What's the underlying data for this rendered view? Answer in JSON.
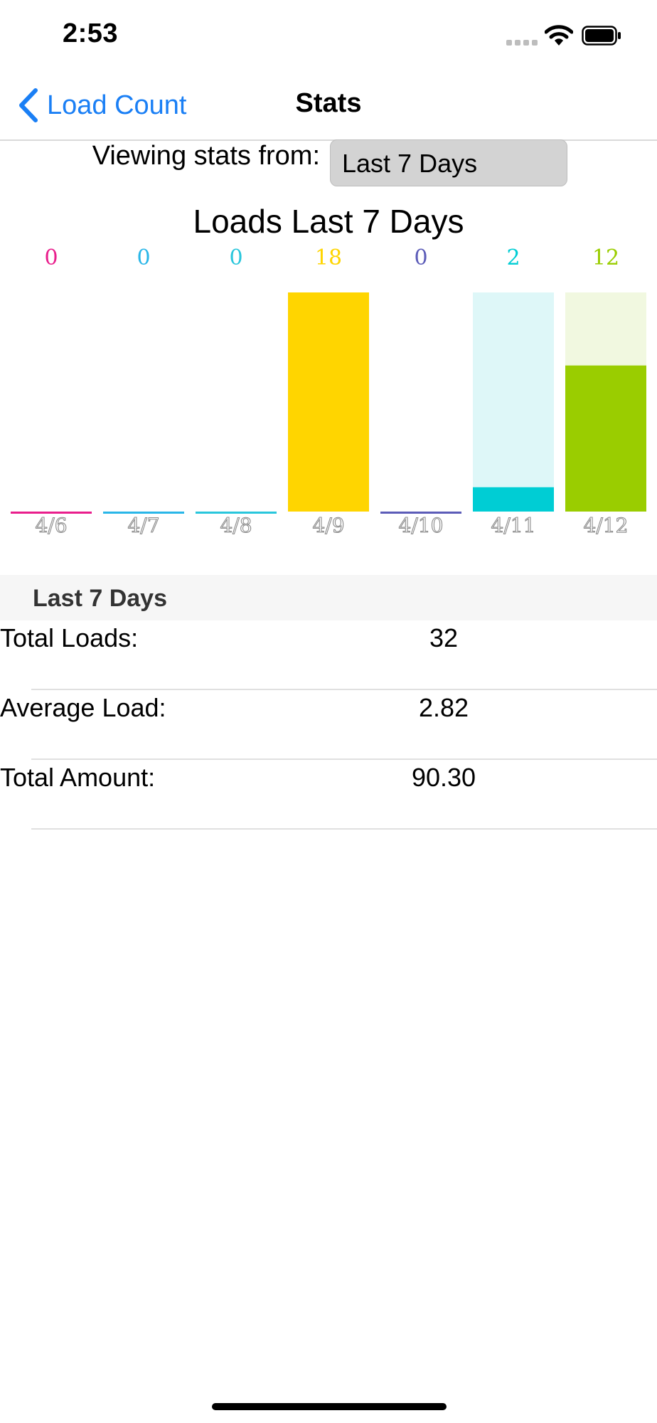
{
  "status_bar": {
    "time": "2:53",
    "icons": [
      "signal-dots-icon",
      "wifi-icon",
      "battery-icon"
    ]
  },
  "nav": {
    "back_label": "Load Count",
    "title": "Stats",
    "back_icon": "chevron-left-icon",
    "accent": "#1a7ff5"
  },
  "filter": {
    "label": "Viewing stats from:",
    "selected": "Last 7 Days"
  },
  "chart_data": {
    "type": "bar",
    "title": "Loads Last 7 Days",
    "categories": [
      "4/6",
      "4/7",
      "4/8",
      "4/9",
      "4/10",
      "4/11",
      "4/12"
    ],
    "values": [
      0,
      0,
      0,
      18,
      0,
      2,
      12
    ],
    "ylim": [
      0,
      18
    ],
    "colors": [
      "#e91e8c",
      "#29b6e8",
      "#29c6dc",
      "#ffd500",
      "#5c5cb8",
      "#00cdd4",
      "#9acd00"
    ],
    "track_colors": [
      "",
      "",
      "",
      "",
      "",
      "#def7f8",
      "#f1f8e0"
    ],
    "grid": false,
    "legend": "none"
  },
  "stats": {
    "section_title": "Last 7 Days",
    "rows": [
      {
        "label": "Total Loads:",
        "value": "32"
      },
      {
        "label": "Average Load:",
        "value": "2.82"
      },
      {
        "label": "Total Amount:",
        "value": "90.30"
      }
    ]
  }
}
